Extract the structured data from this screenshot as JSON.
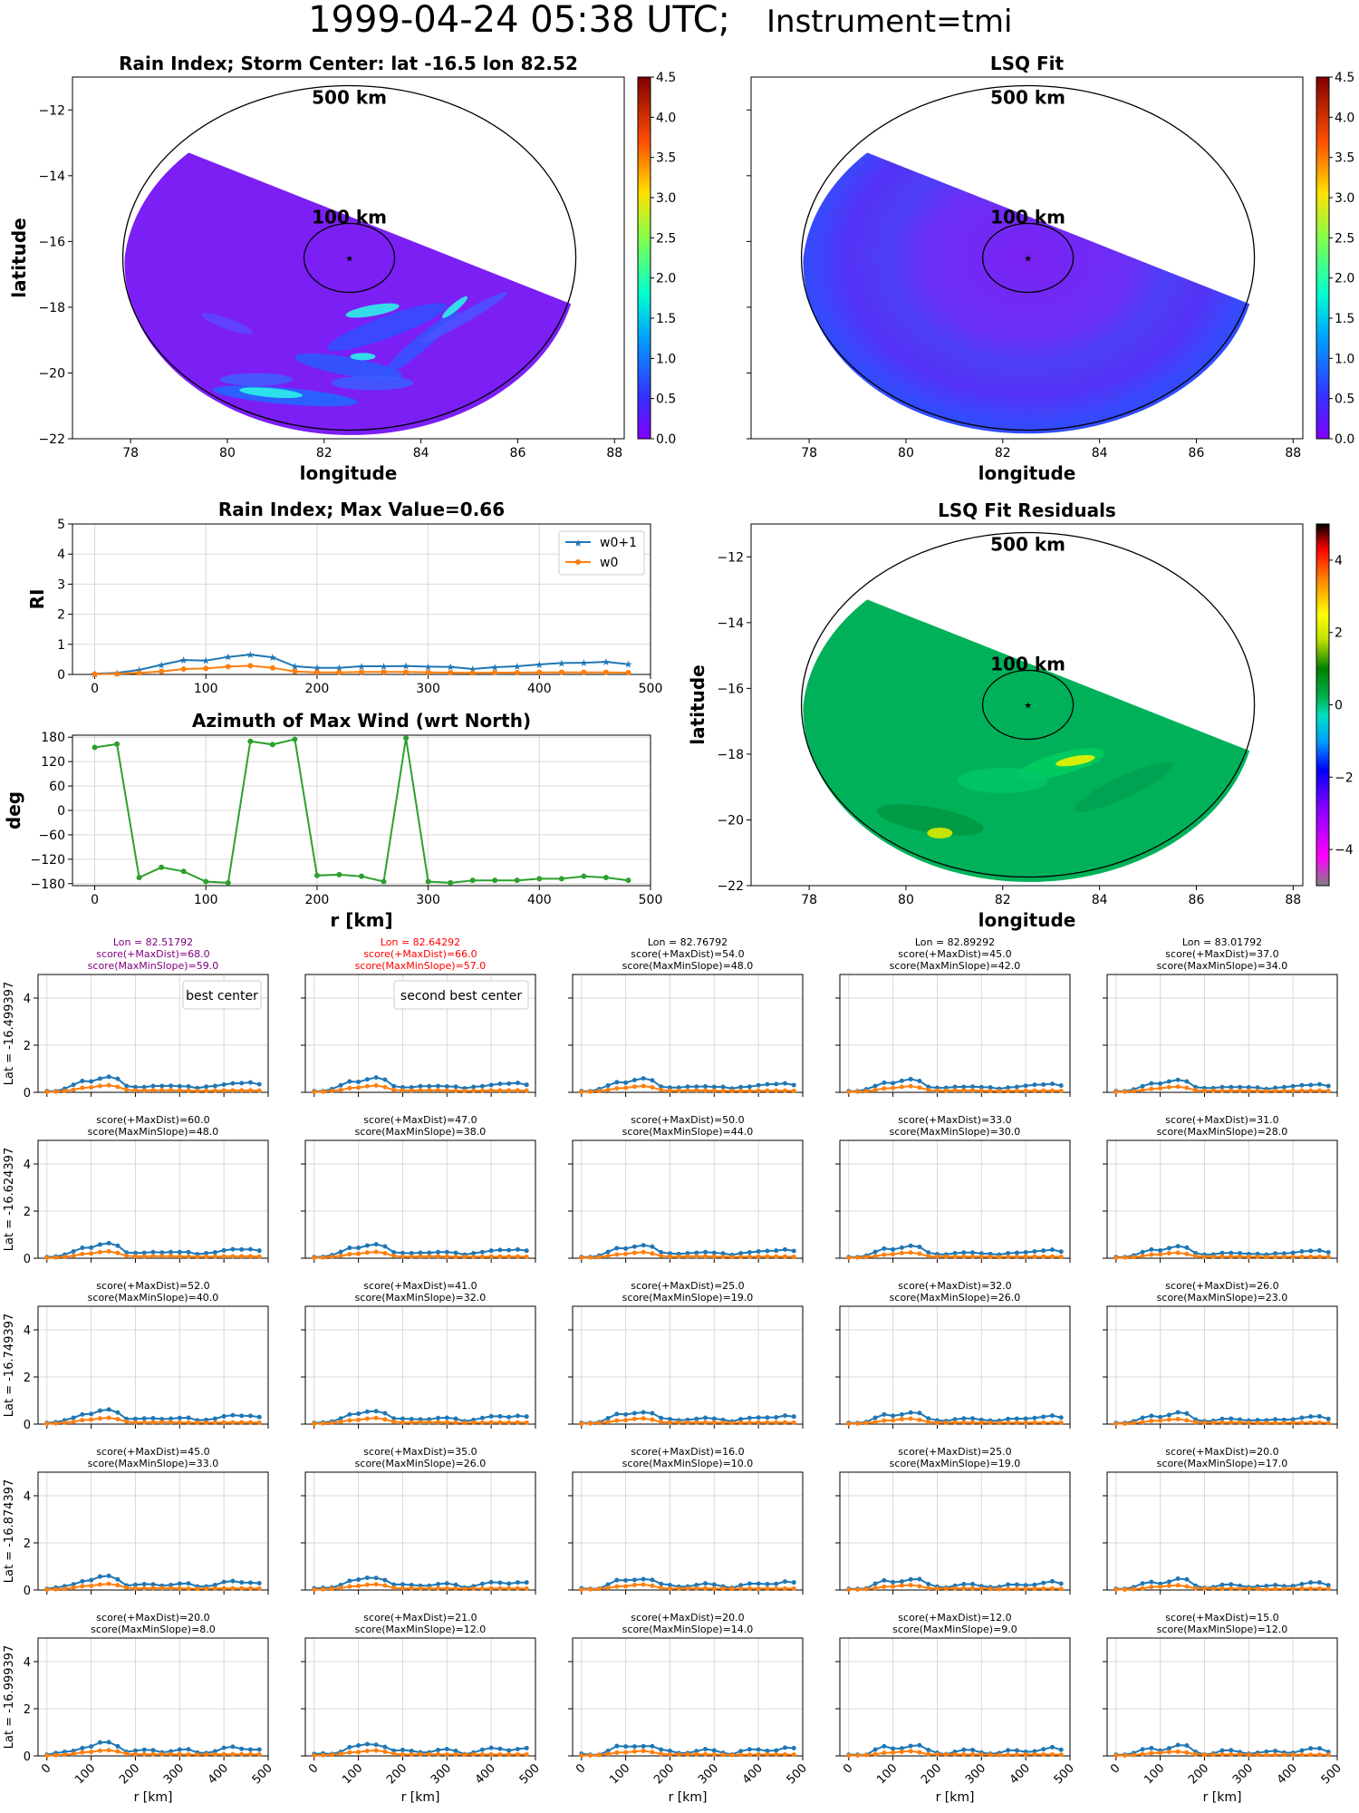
{
  "figure": {
    "title_main": "1999-04-24 05:38 UTC;",
    "title_instrument": "Instrument=tmi",
    "colors": {
      "w0p1": "#1f77b4",
      "w0": "#ff7f0e",
      "azimuth": "#2ca02c",
      "best": "#800080",
      "second": "#ff0000",
      "grid": "#d9d9d9"
    }
  },
  "chart_data": [
    {
      "id": "rain_map",
      "type": "heatmap",
      "title": "Rain Index; Storm Center: lat -16.5 lon 82.52",
      "xlabel": "longitude",
      "ylabel": "latitude",
      "xlim": [
        76.8,
        88.2
      ],
      "ylim": [
        -22,
        -11
      ],
      "xticks": [
        78,
        80,
        82,
        84,
        86,
        88
      ],
      "yticks": [
        -22,
        -20,
        -18,
        -16,
        -14,
        -12
      ],
      "center": {
        "lon": 82.52,
        "lat": -16.5
      },
      "ring_labels": [
        "500 km",
        "100 km"
      ],
      "colorbar": {
        "min": 0,
        "max": 4.5,
        "ticks": [
          "0.0",
          "0.5",
          "1.0",
          "1.5",
          "2.0",
          "2.5",
          "3.0",
          "3.5",
          "4.0",
          "4.5"
        ]
      }
    },
    {
      "id": "lsq_map",
      "type": "heatmap",
      "title": "LSQ Fit",
      "xlabel": "longitude",
      "ylabel": "",
      "xlim": [
        76.8,
        88.2
      ],
      "ylim": [
        -22,
        -11
      ],
      "xticks": [
        78,
        80,
        82,
        84,
        86,
        88
      ],
      "center": {
        "lon": 82.52,
        "lat": -16.5
      },
      "ring_labels": [
        "500 km",
        "100 km"
      ],
      "colorbar": {
        "min": 0,
        "max": 4.5,
        "ticks": [
          "0.0",
          "0.5",
          "1.0",
          "1.5",
          "2.0",
          "2.5",
          "3.0",
          "3.5",
          "4.0",
          "4.5"
        ]
      }
    },
    {
      "id": "resid_map",
      "type": "heatmap",
      "title": "LSQ Fit Residuals",
      "xlabel": "longitude",
      "ylabel": "latitude",
      "xlim": [
        76.8,
        88.2
      ],
      "ylim": [
        -22,
        -11
      ],
      "xticks": [
        78,
        80,
        82,
        84,
        86,
        88
      ],
      "yticks": [
        -22,
        -20,
        -18,
        -16,
        -14,
        -12
      ],
      "center": {
        "lon": 82.52,
        "lat": -16.5
      },
      "ring_labels": [
        "500 km",
        "100 km"
      ],
      "colorbar": {
        "min": -5,
        "max": 5,
        "ticks": [
          "−4",
          "−2",
          "0",
          "2",
          "4"
        ]
      }
    },
    {
      "id": "ri_profile",
      "type": "line",
      "title": "Rain Index; Max Value=0.66",
      "ylabel": "RI",
      "xlim": [
        -20,
        500
      ],
      "ylim": [
        0,
        5
      ],
      "xticks": [
        0,
        100,
        200,
        300,
        400,
        500
      ],
      "yticks": [
        0,
        1,
        2,
        3,
        4,
        5
      ],
      "x": [
        0,
        20,
        40,
        60,
        80,
        100,
        120,
        140,
        160,
        180,
        200,
        220,
        240,
        260,
        280,
        300,
        320,
        340,
        360,
        380,
        400,
        420,
        440,
        460,
        480
      ],
      "series": [
        {
          "name": "w0+1",
          "values": [
            0.02,
            0.05,
            0.15,
            0.32,
            0.48,
            0.46,
            0.58,
            0.66,
            0.57,
            0.27,
            0.22,
            0.22,
            0.27,
            0.27,
            0.28,
            0.26,
            0.25,
            0.18,
            0.24,
            0.27,
            0.33,
            0.38,
            0.39,
            0.42,
            0.34
          ]
        },
        {
          "name": "w0",
          "values": [
            0.01,
            0.02,
            0.05,
            0.1,
            0.18,
            0.2,
            0.26,
            0.29,
            0.22,
            0.1,
            0.07,
            0.07,
            0.08,
            0.08,
            0.08,
            0.07,
            0.06,
            0.05,
            0.06,
            0.06,
            0.07,
            0.07,
            0.07,
            0.07,
            0.06
          ]
        }
      ]
    },
    {
      "id": "azimuth_profile",
      "type": "line",
      "title": "Azimuth of Max Wind (wrt North)",
      "xlabel": "r [km]",
      "ylabel": "deg",
      "xlim": [
        -20,
        500
      ],
      "ylim": [
        -185,
        185
      ],
      "xticks": [
        0,
        100,
        200,
        300,
        400,
        500
      ],
      "yticks": [
        -180,
        -120,
        -60,
        0,
        60,
        120,
        180
      ],
      "x": [
        0,
        20,
        40,
        60,
        80,
        100,
        120,
        140,
        160,
        180,
        200,
        220,
        240,
        260,
        280,
        300,
        320,
        340,
        360,
        380,
        400,
        420,
        440,
        460,
        480
      ],
      "values": [
        155,
        163,
        -165,
        -140,
        -150,
        -175,
        -178,
        170,
        162,
        175,
        -160,
        -158,
        -162,
        -175,
        178,
        -175,
        -178,
        -172,
        -172,
        -172,
        -168,
        -168,
        -162,
        -165,
        -172
      ]
    },
    {
      "id": "grid_profiles",
      "type": "line",
      "row_label_prefix": "Lat = ",
      "row_lats": [
        "-16.499397",
        "-16.624397",
        "-16.749397",
        "-16.874397",
        "-16.999397"
      ],
      "col_lons": [
        "82.51792",
        "82.64292",
        "82.76792",
        "82.89292",
        "83.01792"
      ],
      "lon_prefix": "Lon = ",
      "score1_prefix": "score(+MaxDist)=",
      "score2_prefix": "score(MaxMinSlope)=",
      "score_maxdist": [
        [
          "68.0",
          "66.0",
          "54.0",
          "45.0",
          "37.0"
        ],
        [
          "60.0",
          "47.0",
          "50.0",
          "33.0",
          "31.0"
        ],
        [
          "52.0",
          "41.0",
          "25.0",
          "32.0",
          "26.0"
        ],
        [
          "45.0",
          "35.0",
          "16.0",
          "25.0",
          "20.0"
        ],
        [
          "20.0",
          "21.0",
          "20.0",
          "12.0",
          "15.0"
        ]
      ],
      "score_maxminslope": [
        [
          "59.0",
          "57.0",
          "48.0",
          "42.0",
          "34.0"
        ],
        [
          "48.0",
          "38.0",
          "44.0",
          "30.0",
          "28.0"
        ],
        [
          "40.0",
          "32.0",
          "19.0",
          "26.0",
          "23.0"
        ],
        [
          "33.0",
          "26.0",
          "10.0",
          "19.0",
          "17.0"
        ],
        [
          "8.0",
          "12.0",
          "14.0",
          "9.0",
          "12.0"
        ]
      ],
      "best_label": "best center",
      "second_label": "second best center",
      "xlabel": "r [km]",
      "xlim": [
        -20,
        500
      ],
      "ylim": [
        0,
        5
      ],
      "xticks": [
        0,
        100,
        200,
        300,
        400,
        500
      ],
      "yticks": [
        0,
        2,
        4
      ]
    }
  ]
}
